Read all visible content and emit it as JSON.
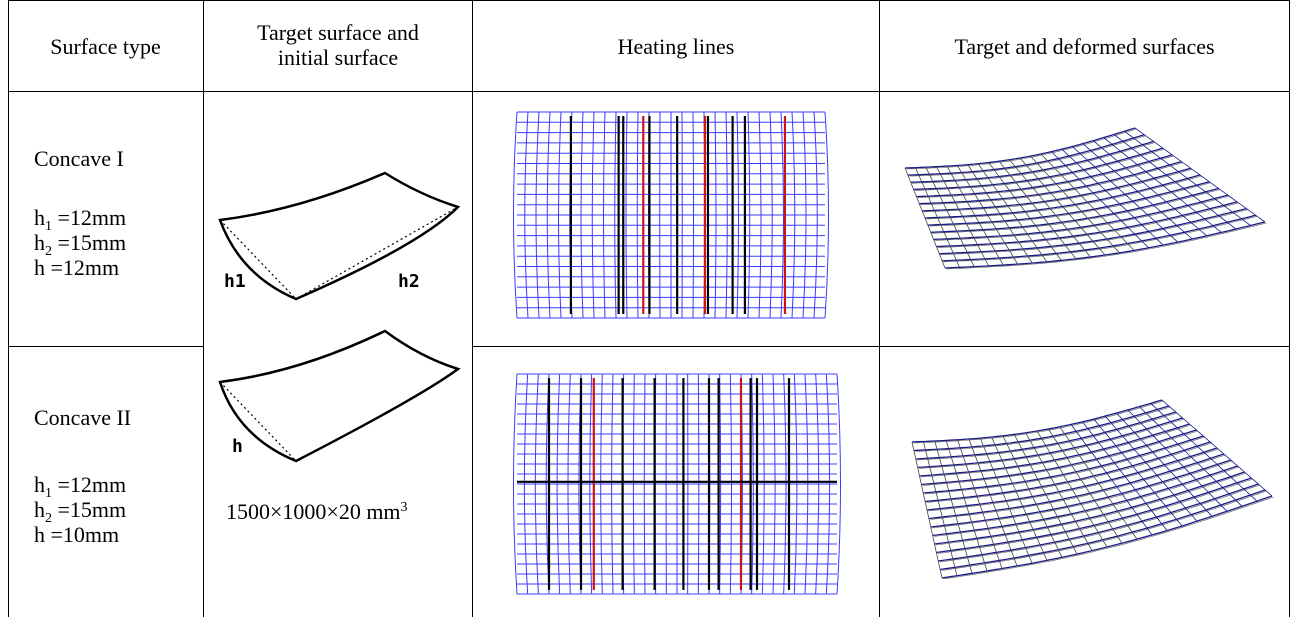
{
  "headers": {
    "surface_type": "Surface type",
    "target_initial_line1": "Target surface and",
    "target_initial_line2": "initial surface",
    "heating_lines": "Heating lines",
    "target_deformed": "Target and deformed surfaces"
  },
  "rows": [
    {
      "name": "Concave I",
      "params": [
        {
          "sym": "h",
          "sub": "1",
          "val": " =12mm"
        },
        {
          "sym": "h",
          "sub": "2",
          "val": " =15mm"
        },
        {
          "sym": "h",
          "sub": "",
          "val": " =12mm"
        }
      ]
    },
    {
      "name": "Concave II",
      "params": [
        {
          "sym": "h",
          "sub": "1",
          "val": " =12mm"
        },
        {
          "sym": "h",
          "sub": "2",
          "val": " =15mm"
        },
        {
          "sym": "h",
          "sub": "",
          "val": " =10mm"
        }
      ]
    }
  ],
  "sketch_labels": {
    "h1": "h1",
    "h2": "h2",
    "h": "h"
  },
  "plate_size": {
    "text": "1500×1000×20 mm",
    "exponent": "3"
  },
  "colors": {
    "grid_blue": "#3b3bff",
    "mesh_dark_blue": "#1a1a8c",
    "heat_line": "#000000",
    "heat_line_red": "#c81414"
  }
}
